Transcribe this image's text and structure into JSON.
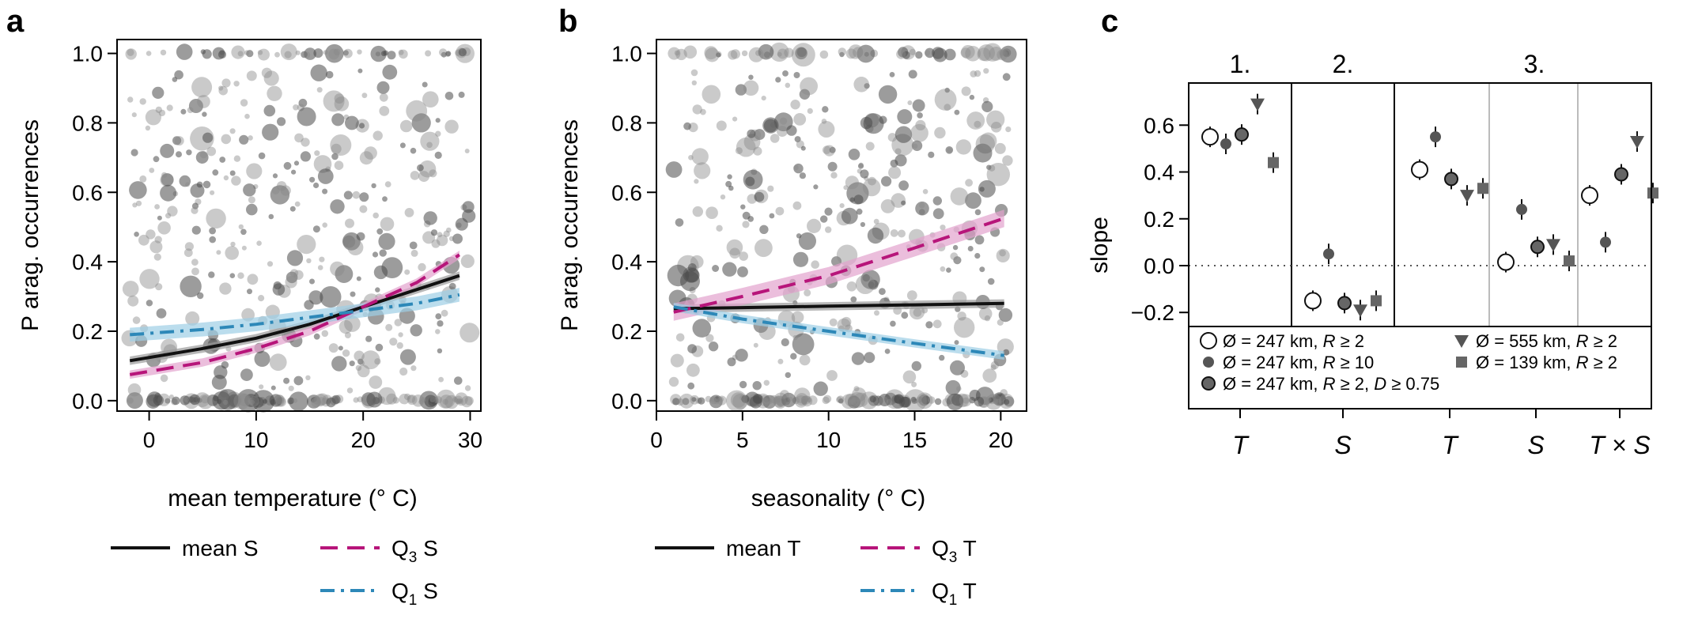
{
  "colors": {
    "black_line": "#111111",
    "q3_line": "#b7157a",
    "q3_band": "#e3a3cd",
    "q1_line": "#2d88b8",
    "q1_band": "#9ecfe6",
    "points": "#8a8a8a",
    "frame": "#000000",
    "separator_light": "#bbbbbb"
  },
  "chart_data": [
    {
      "id": "a",
      "type": "scatter",
      "panel_label": "a",
      "xlabel": "mean temperature (° C)",
      "ylabel": "P arag. occurrences",
      "xlim": [
        -3,
        31
      ],
      "ylim": [
        -0.03,
        1.04
      ],
      "xticks": [
        0,
        10,
        20,
        30
      ],
      "yticks": [
        "0.0",
        "0.2",
        "0.4",
        "0.6",
        "0.8",
        "1.0"
      ],
      "series": [
        {
          "name": "mean S",
          "style": "solid",
          "color": "black_line",
          "x": [
            -1.8,
            5,
            10,
            15,
            20,
            25,
            29
          ],
          "y": [
            0.115,
            0.15,
            0.18,
            0.22,
            0.27,
            0.32,
            0.36
          ],
          "band": 0.012
        },
        {
          "name": "Q3 S",
          "style": "dashed",
          "color": "q3_line",
          "x": [
            -1.8,
            5,
            10,
            15,
            20,
            25,
            29
          ],
          "y": [
            0.075,
            0.11,
            0.15,
            0.2,
            0.27,
            0.34,
            0.42
          ],
          "band": 0.012
        },
        {
          "name": "Q1 S",
          "style": "dashdot",
          "color": "q1_line",
          "x": [
            -1.8,
            5,
            10,
            15,
            20,
            25,
            29
          ],
          "y": [
            0.19,
            0.205,
            0.22,
            0.24,
            0.26,
            0.28,
            0.305
          ],
          "band": 0.02
        }
      ],
      "legend": [
        {
          "label": "mean S",
          "sub": "",
          "style": "solid",
          "color": "black_line"
        },
        {
          "label": "Q",
          "sub": "3",
          "suffix": " S",
          "style": "dashed",
          "color": "q3_line"
        },
        {
          "label": "Q",
          "sub": "1",
          "suffix": " S",
          "style": "dashdot",
          "color": "q1_line"
        }
      ]
    },
    {
      "id": "b",
      "type": "scatter",
      "panel_label": "b",
      "xlabel": "seasonality (° C)",
      "ylabel": "P arag. occurrences",
      "xlim": [
        0,
        21.5
      ],
      "ylim": [
        -0.03,
        1.04
      ],
      "xticks": [
        0,
        5,
        10,
        15,
        20
      ],
      "yticks": [
        "0.0",
        "0.2",
        "0.4",
        "0.6",
        "0.8",
        "1.0"
      ],
      "series": [
        {
          "name": "mean T",
          "style": "solid",
          "color": "black_line",
          "x": [
            1,
            5,
            10,
            15,
            20.2
          ],
          "y": [
            0.265,
            0.268,
            0.272,
            0.276,
            0.28
          ],
          "band": 0.012
        },
        {
          "name": "Q3 T",
          "style": "dashed",
          "color": "q3_line",
          "x": [
            1,
            5,
            10,
            15,
            20.2
          ],
          "y": [
            0.255,
            0.3,
            0.36,
            0.44,
            0.525
          ],
          "band": 0.025
        },
        {
          "name": "Q1 T",
          "style": "dashdot",
          "color": "q1_line",
          "x": [
            1,
            5,
            10,
            15,
            20.2
          ],
          "y": [
            0.27,
            0.235,
            0.2,
            0.165,
            0.13
          ],
          "band": 0.012
        }
      ],
      "legend": [
        {
          "label": "mean T",
          "sub": "",
          "style": "solid",
          "color": "black_line"
        },
        {
          "label": "Q",
          "sub": "3",
          "suffix": " T",
          "style": "dashed",
          "color": "q3_line"
        },
        {
          "label": "Q",
          "sub": "1",
          "suffix": " T",
          "style": "dashdot",
          "color": "q1_line"
        }
      ]
    },
    {
      "id": "c",
      "type": "scatter",
      "panel_label": "c",
      "ylabel": "slope",
      "ylim": [
        -0.26,
        0.78
      ],
      "yticks": [
        "−0.2",
        "0.0",
        "0.2",
        "0.4",
        "0.6"
      ],
      "ytick_values": [
        -0.2,
        0.0,
        0.2,
        0.4,
        0.6
      ],
      "groups": [
        "1.",
        "2.",
        "3."
      ],
      "categories": [
        "T",
        "S",
        "T",
        "S",
        "T × S"
      ],
      "category_group": [
        0,
        1,
        2,
        2,
        2
      ],
      "markers": [
        {
          "name": "Ø = 247 km, R ≥ 2",
          "shape": "open-circle",
          "values": [
            0.55,
            -0.15,
            0.41,
            0.015,
            0.3
          ]
        },
        {
          "name": "Ø = 247 km, R ≥ 10",
          "shape": "filled-circle",
          "values": [
            0.52,
            0.05,
            0.55,
            0.24,
            0.1
          ]
        },
        {
          "name": "Ø = 247 km, R ≥ 2, D ≥ 0.75",
          "shape": "outlined-circle",
          "values": [
            0.56,
            -0.16,
            0.37,
            0.08,
            0.39
          ]
        },
        {
          "name": "Ø = 555 km, R ≥ 2",
          "shape": "triangle",
          "values": [
            0.69,
            -0.19,
            0.3,
            0.09,
            0.53
          ]
        },
        {
          "name": "Ø = 139 km, R ≥ 2",
          "shape": "square",
          "values": [
            0.44,
            -0.15,
            0.33,
            0.02,
            0.31
          ]
        }
      ],
      "legend_rows": [
        {
          "col": 0,
          "row": 0,
          "marker": 0,
          "parts": [
            "Ø = 247 km,  ",
            "R",
            " ≥ 2"
          ]
        },
        {
          "col": 0,
          "row": 1,
          "marker": 1,
          "parts": [
            "Ø = 247 km,  ",
            "R",
            " ≥ 10"
          ]
        },
        {
          "col": 0,
          "row": 2,
          "marker": 2,
          "parts": [
            "Ø = 247 km,  ",
            "R",
            " ≥ 2,  ",
            "D",
            " ≥ 0.75"
          ]
        },
        {
          "col": 1,
          "row": 0,
          "marker": 3,
          "parts": [
            "Ø = 555 km,  ",
            "R",
            " ≥ 2"
          ]
        },
        {
          "col": 1,
          "row": 1,
          "marker": 4,
          "parts": [
            "Ø = 139 km,  ",
            "R",
            " ≥ 2"
          ]
        }
      ]
    }
  ]
}
